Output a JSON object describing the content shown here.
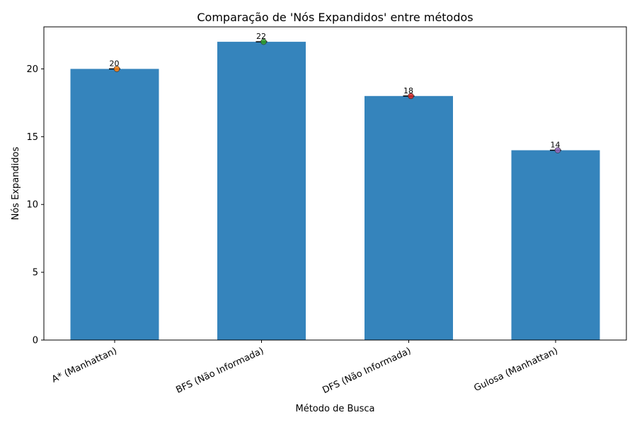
{
  "chart_data": {
    "type": "bar",
    "title": "Comparação de 'Nós Expandidos' entre métodos",
    "xlabel": "Método de Busca",
    "ylabel": "Nós Expandidos",
    "categories": [
      "A* (Manhattan)",
      "BFS (Não Informada)",
      "DFS (Não Informada)",
      "Gulosa (Manhattan)"
    ],
    "values": [
      20,
      22,
      18,
      14
    ],
    "data_labels": [
      "20",
      "22",
      "18",
      "14"
    ],
    "ylim": [
      0,
      23.1
    ],
    "yticks": [
      0,
      5,
      10,
      15,
      20
    ],
    "ytick_labels": [
      "0",
      "5",
      "10",
      "15",
      "20"
    ],
    "grid": false,
    "legend": "none",
    "bar_color": "#3584bc",
    "marker_colors": [
      "#ff7f0e",
      "#2ca02c",
      "#d62728",
      "#9467bd"
    ]
  }
}
